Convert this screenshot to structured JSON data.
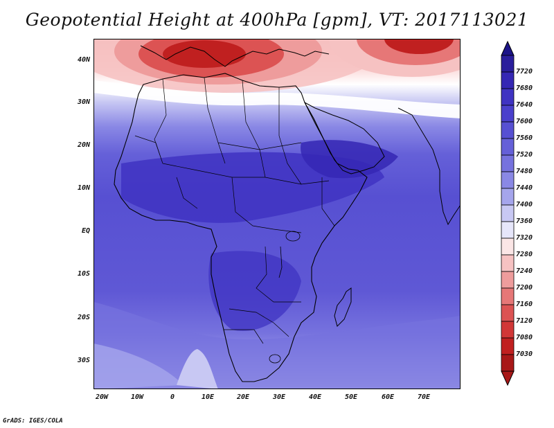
{
  "title": "Geopotential Height at 400hPa [gpm], VT: 2017113021",
  "credit": "GrADS: IGES/COLA",
  "map": {
    "lon_range": [
      -25,
      80
    ],
    "lat_range": [
      -37,
      45
    ],
    "y_ticks": [
      "40N",
      "30N",
      "20N",
      "10N",
      "EQ",
      "10S",
      "20S",
      "30S"
    ],
    "x_ticks": [
      "20W",
      "10W",
      "0",
      "10E",
      "20E",
      "30E",
      "40E",
      "50E",
      "60E",
      "70E"
    ]
  },
  "colorbar": {
    "labels": [
      "7720",
      "7680",
      "7640",
      "7600",
      "7560",
      "7520",
      "7480",
      "7440",
      "7400",
      "7360",
      "7320",
      "7280",
      "7240",
      "7200",
      "7160",
      "7120",
      "7080",
      "7030"
    ],
    "colors": [
      "#2a1e9c",
      "#3527b4",
      "#3f33c2",
      "#4a40cc",
      "#5750d2",
      "#6560d8",
      "#7672de",
      "#8a88e5",
      "#a5a5ec",
      "#c8c8f3",
      "#e6e6fa",
      "#fbe6e6",
      "#f6c2c2",
      "#ee9c9c",
      "#e67777",
      "#dc5353",
      "#d13737",
      "#c02020",
      "#a81818"
    ]
  },
  "icons": {
    "arrow_up": "colorbar-up-arrow",
    "arrow_down": "colorbar-down-arrow"
  }
}
